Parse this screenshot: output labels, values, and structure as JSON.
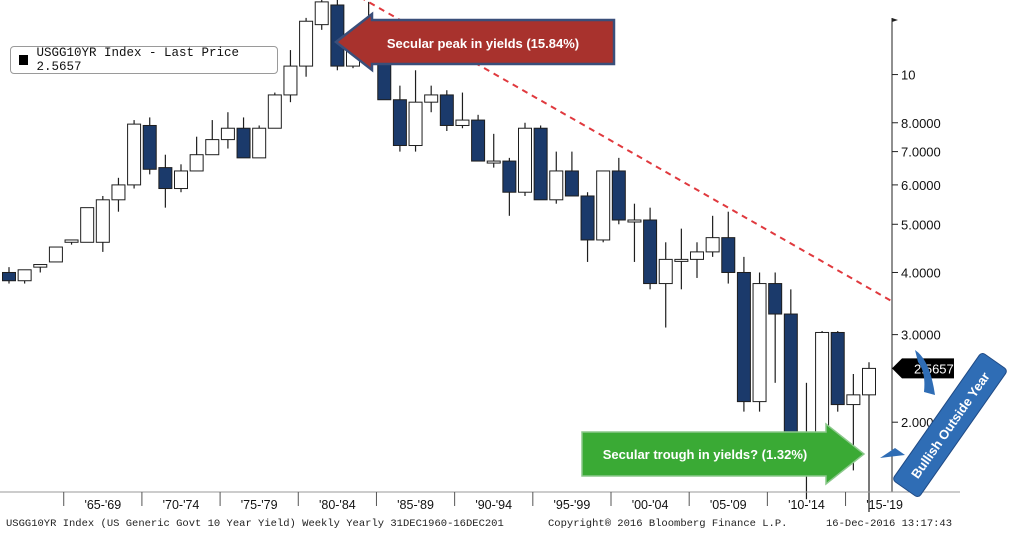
{
  "legend": {
    "text": "USGG10YR Index - Last Price 2.5657"
  },
  "annotations": {
    "peak": "Secular peak in yields (15.84%)",
    "trough": "Secular trough in yields? (1.32%)",
    "bullish": "Bullish Outside Year"
  },
  "last_price_tag": "2.5657",
  "footer": {
    "left": "USGG10YR Index (US Generic Govt 10 Year Yield) Weekly  Yearly 31DEC1960-16DEC201",
    "center": "Copyright® 2016 Bloomberg Finance L.P.",
    "right": "16-Dec-2016 13:17:43"
  },
  "colors": {
    "bear": "#1b3a6b",
    "bull": "#ffffff",
    "trend": "#e0393e",
    "peak_arrow": "#a8322d",
    "trough_arrow": "#3aaa35",
    "bullish_callout": "#2f6db5"
  },
  "chart_data": {
    "type": "candlestick",
    "scale": "log",
    "ylim": [
      1.2,
      20
    ],
    "y_ticks": [
      "10",
      "8.0000",
      "7.0000",
      "6.0000",
      "5.0000",
      "4.0000",
      "3.0000",
      "2.0000"
    ],
    "x_tick_labels": [
      "'65-'69",
      "'70-'74",
      "'75-'79",
      "'80-'84",
      "'85-'89",
      "'90-'94",
      "'95-'99",
      "'00-'04",
      "'05-'09",
      "'10-'14",
      "'15-'19"
    ],
    "candles": [
      {
        "year": 1961,
        "open": 4.0,
        "high": 4.1,
        "low": 3.8,
        "close": 3.85
      },
      {
        "year": 1962,
        "open": 3.85,
        "high": 4.05,
        "low": 3.8,
        "close": 4.05
      },
      {
        "year": 1963,
        "open": 4.1,
        "high": 4.15,
        "low": 4.0,
        "close": 4.15
      },
      {
        "year": 1964,
        "open": 4.2,
        "high": 4.5,
        "low": 4.2,
        "close": 4.5
      },
      {
        "year": 1965,
        "open": 4.6,
        "high": 4.65,
        "low": 4.55,
        "close": 4.65
      },
      {
        "year": 1966,
        "open": 4.6,
        "high": 5.4,
        "low": 4.6,
        "close": 5.4
      },
      {
        "year": 1967,
        "open": 4.6,
        "high": 5.7,
        "low": 4.4,
        "close": 5.6
      },
      {
        "year": 1968,
        "open": 5.6,
        "high": 6.2,
        "low": 5.3,
        "close": 6.0
      },
      {
        "year": 1969,
        "open": 6.0,
        "high": 8.1,
        "low": 5.9,
        "close": 7.95
      },
      {
        "year": 1970,
        "open": 7.9,
        "high": 8.2,
        "low": 6.3,
        "close": 6.45
      },
      {
        "year": 1971,
        "open": 6.5,
        "high": 6.9,
        "low": 5.4,
        "close": 5.9
      },
      {
        "year": 1972,
        "open": 5.9,
        "high": 6.6,
        "low": 5.8,
        "close": 6.4
      },
      {
        "year": 1973,
        "open": 6.4,
        "high": 7.5,
        "low": 6.4,
        "close": 6.9
      },
      {
        "year": 1974,
        "open": 6.9,
        "high": 8.1,
        "low": 6.9,
        "close": 7.4
      },
      {
        "year": 1975,
        "open": 7.4,
        "high": 8.4,
        "low": 7.1,
        "close": 7.8
      },
      {
        "year": 1976,
        "open": 7.8,
        "high": 8.2,
        "low": 6.8,
        "close": 6.8
      },
      {
        "year": 1977,
        "open": 6.8,
        "high": 7.9,
        "low": 6.8,
        "close": 7.8
      },
      {
        "year": 1978,
        "open": 7.8,
        "high": 9.2,
        "low": 7.8,
        "close": 9.1
      },
      {
        "year": 1979,
        "open": 9.1,
        "high": 11.2,
        "low": 8.8,
        "close": 10.4
      },
      {
        "year": 1980,
        "open": 10.4,
        "high": 13.0,
        "low": 9.9,
        "close": 12.8
      },
      {
        "year": 1981,
        "open": 12.6,
        "high": 15.84,
        "low": 12.3,
        "close": 14.0
      },
      {
        "year": 1982,
        "open": 13.8,
        "high": 14.8,
        "low": 10.2,
        "close": 10.4
      },
      {
        "year": 1983,
        "open": 10.4,
        "high": 12.2,
        "low": 10.3,
        "close": 11.8
      },
      {
        "year": 1984,
        "open": 11.8,
        "high": 14.0,
        "low": 11.4,
        "close": 11.6
      },
      {
        "year": 1985,
        "open": 11.6,
        "high": 11.7,
        "low": 8.9,
        "close": 8.9
      },
      {
        "year": 1986,
        "open": 8.9,
        "high": 9.5,
        "low": 7.0,
        "close": 7.2
      },
      {
        "year": 1987,
        "open": 7.2,
        "high": 10.2,
        "low": 7.0,
        "close": 8.8
      },
      {
        "year": 1988,
        "open": 8.8,
        "high": 9.5,
        "low": 8.4,
        "close": 9.1
      },
      {
        "year": 1989,
        "open": 9.1,
        "high": 9.3,
        "low": 7.7,
        "close": 7.9
      },
      {
        "year": 1990,
        "open": 7.9,
        "high": 9.2,
        "low": 7.8,
        "close": 8.1
      },
      {
        "year": 1991,
        "open": 8.1,
        "high": 8.3,
        "low": 6.7,
        "close": 6.7
      },
      {
        "year": 1992,
        "open": 6.7,
        "high": 7.6,
        "low": 6.5,
        "close": 6.7
      },
      {
        "year": 1993,
        "open": 6.7,
        "high": 6.8,
        "low": 5.2,
        "close": 5.8
      },
      {
        "year": 1994,
        "open": 5.8,
        "high": 8.0,
        "low": 5.7,
        "close": 7.8
      },
      {
        "year": 1995,
        "open": 7.8,
        "high": 7.9,
        "low": 5.6,
        "close": 5.6
      },
      {
        "year": 1996,
        "open": 5.6,
        "high": 7.0,
        "low": 5.5,
        "close": 6.4
      },
      {
        "year": 1997,
        "open": 6.4,
        "high": 7.0,
        "low": 5.7,
        "close": 5.7
      },
      {
        "year": 1998,
        "open": 5.7,
        "high": 5.8,
        "low": 4.2,
        "close": 4.65
      },
      {
        "year": 1999,
        "open": 4.65,
        "high": 6.4,
        "low": 4.6,
        "close": 6.4
      },
      {
        "year": 2000,
        "open": 6.4,
        "high": 6.8,
        "low": 5.0,
        "close": 5.1
      },
      {
        "year": 2001,
        "open": 5.1,
        "high": 5.5,
        "low": 4.2,
        "close": 5.1
      },
      {
        "year": 2002,
        "open": 5.1,
        "high": 5.4,
        "low": 3.7,
        "close": 3.8
      },
      {
        "year": 2003,
        "open": 3.8,
        "high": 4.6,
        "low": 3.1,
        "close": 4.25
      },
      {
        "year": 2004,
        "open": 4.25,
        "high": 4.9,
        "low": 3.7,
        "close": 4.25
      },
      {
        "year": 2005,
        "open": 4.25,
        "high": 4.6,
        "low": 3.9,
        "close": 4.4
      },
      {
        "year": 2006,
        "open": 4.4,
        "high": 5.2,
        "low": 4.3,
        "close": 4.7
      },
      {
        "year": 2007,
        "open": 4.7,
        "high": 5.3,
        "low": 3.8,
        "close": 4.0
      },
      {
        "year": 2008,
        "open": 4.0,
        "high": 4.3,
        "low": 2.1,
        "close": 2.2
      },
      {
        "year": 2009,
        "open": 2.2,
        "high": 4.0,
        "low": 2.1,
        "close": 3.8
      },
      {
        "year": 2010,
        "open": 3.8,
        "high": 4.0,
        "low": 2.4,
        "close": 3.3
      },
      {
        "year": 2011,
        "open": 3.3,
        "high": 3.7,
        "low": 1.7,
        "close": 1.88
      },
      {
        "year": 2012,
        "open": 1.88,
        "high": 2.4,
        "low": 1.4,
        "close": 1.76
      },
      {
        "year": 2013,
        "open": 1.76,
        "high": 3.05,
        "low": 1.6,
        "close": 3.03
      },
      {
        "year": 2014,
        "open": 3.03,
        "high": 3.05,
        "low": 2.1,
        "close": 2.17
      },
      {
        "year": 2015,
        "open": 2.17,
        "high": 2.5,
        "low": 1.6,
        "close": 2.27
      },
      {
        "year": 2016,
        "open": 2.27,
        "high": 2.64,
        "low": 1.32,
        "close": 2.5657
      }
    ]
  }
}
